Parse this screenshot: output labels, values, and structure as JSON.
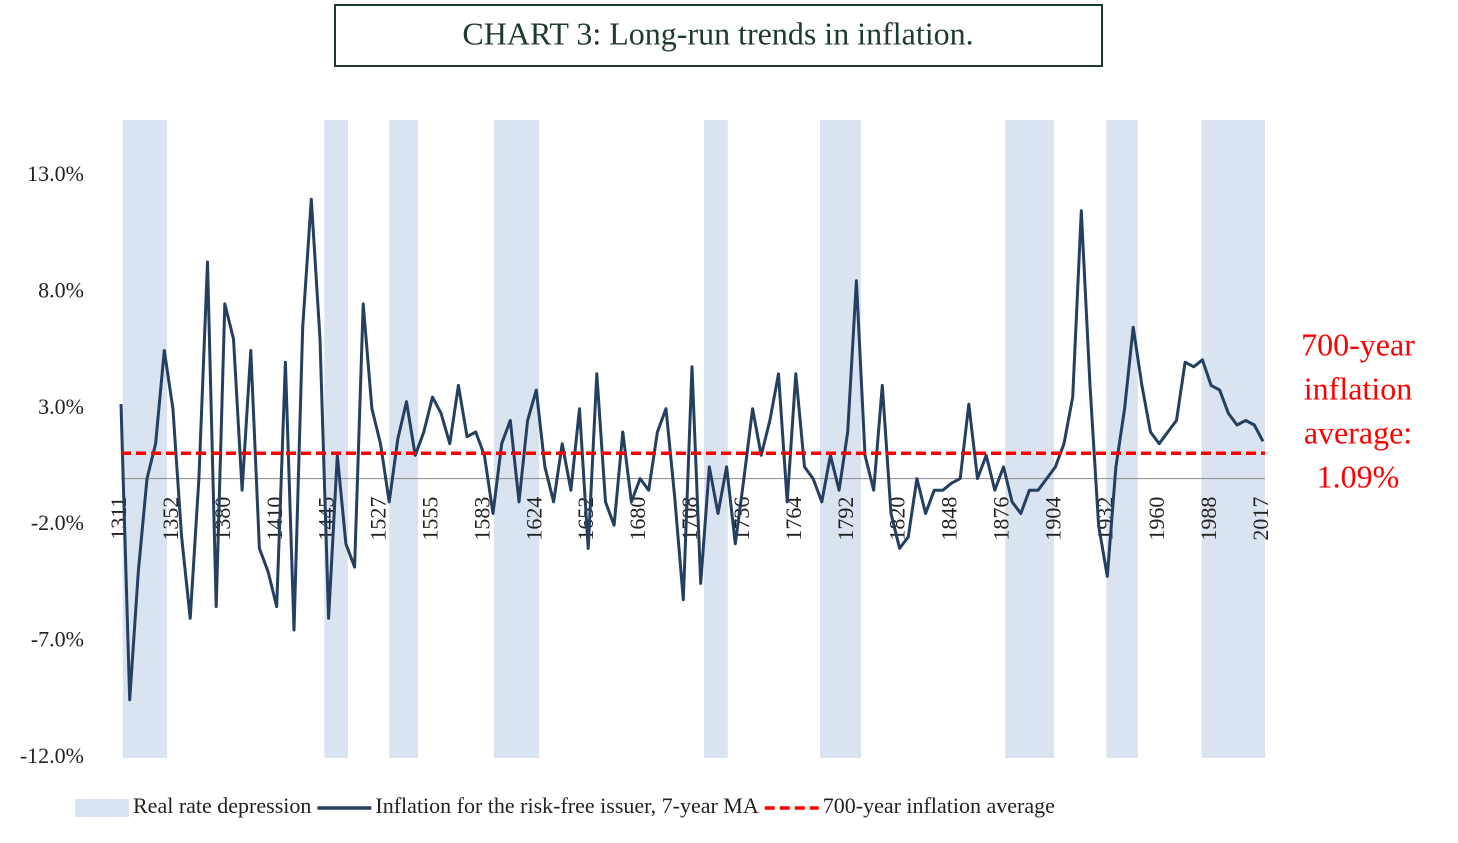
{
  "chart_data": {
    "type": "line",
    "title": "CHART 3: Long-run trends in inflation.",
    "annotation": [
      "700-year",
      "inflation",
      "average:",
      "1.09%"
    ],
    "categories": [
      "1311",
      null,
      null,
      null,
      null,
      null,
      "1352",
      null,
      null,
      null,
      null,
      null,
      "1380",
      null,
      null,
      null,
      null,
      null,
      "1410",
      null,
      null,
      null,
      null,
      null,
      "1445",
      null,
      null,
      null,
      null,
      null,
      "1527",
      null,
      null,
      null,
      null,
      null,
      "1555",
      null,
      null,
      null,
      null,
      null,
      "1583",
      null,
      null,
      null,
      null,
      null,
      "1624",
      null,
      null,
      null,
      null,
      null,
      "1652",
      null,
      null,
      null,
      null,
      null,
      "1680",
      null,
      null,
      null,
      null,
      null,
      "1708",
      null,
      null,
      null,
      null,
      null,
      "1736",
      null,
      null,
      null,
      null,
      null,
      "1764",
      null,
      null,
      null,
      null,
      null,
      "1792",
      null,
      null,
      null,
      null,
      null,
      "1820",
      null,
      null,
      null,
      null,
      null,
      "1848",
      null,
      null,
      null,
      null,
      null,
      "1876",
      null,
      null,
      null,
      null,
      null,
      "1904",
      null,
      null,
      null,
      null,
      null,
      "1932",
      null,
      null,
      null,
      null,
      null,
      "1960",
      null,
      null,
      null,
      null,
      null,
      "1988",
      null,
      null,
      null,
      null,
      null,
      "2017"
    ],
    "series": [
      {
        "name": "Real rate depression",
        "type": "band",
        "color": "#dae3f0",
        "ranges": [
          [
            0.2,
            5.1
          ],
          [
            23.5,
            26.0
          ],
          [
            31.0,
            34.1
          ],
          [
            43.1,
            48.1
          ],
          [
            67.4,
            69.9
          ],
          [
            80.8,
            85.3
          ],
          [
            102.2,
            107.6
          ],
          [
            113.9,
            117.3
          ],
          [
            124.9,
            132
          ]
        ]
      },
      {
        "name": "Inflation for the risk-free issuer, 7-year MA",
        "type": "line",
        "color": "#243f60",
        "values": [
          3.2,
          -9.5,
          -4,
          0,
          1.5,
          5.5,
          3,
          -2.5,
          -6,
          0,
          9.3,
          -5.5,
          7.5,
          6,
          -0.5,
          5.5,
          -3,
          -4,
          -5.5,
          5,
          -6.5,
          6.5,
          12,
          6,
          -6,
          1,
          -2.8,
          -3.8,
          7.5,
          3,
          1.5,
          -1,
          1.7,
          3.3,
          1,
          2,
          3.5,
          2.8,
          1.5,
          4,
          1.8,
          2,
          1,
          -1.5,
          1.5,
          2.5,
          -1,
          2.5,
          3.8,
          0.5,
          -1,
          1.5,
          -0.5,
          3,
          -3,
          4.5,
          -1,
          -2,
          2,
          -1,
          0,
          -0.5,
          2,
          3,
          -0.8,
          -5.2,
          4.8,
          -4.5,
          0.5,
          -1.5,
          0.5,
          -2.8,
          0,
          3,
          1,
          2.5,
          4.5,
          -1,
          4.5,
          0.5,
          0,
          -1,
          1,
          -0.5,
          2,
          8.5,
          1,
          -0.5,
          4,
          -1.5,
          -3,
          -2.5,
          0,
          -1.5,
          -0.5,
          -0.5,
          -0.2,
          0,
          3.2,
          0,
          1,
          -0.5,
          0.5,
          -1,
          -1.5,
          -0.5,
          -0.5,
          0,
          0.5,
          1.5,
          3.5,
          11.5,
          4,
          -2,
          -4.2,
          0.5,
          3,
          6.5,
          4,
          2,
          1.5,
          2,
          2.5,
          5,
          4.8,
          5.1,
          4,
          3.8,
          2.8,
          2.3,
          2.5,
          2.3,
          1.6
        ]
      },
      {
        "name": "700-year inflation average",
        "type": "hline",
        "color": "#ff0000",
        "value": 1.09
      }
    ],
    "ylim": [
      -12,
      15.4
    ],
    "yticks": [
      {
        "value": -12,
        "label": "-12.0%"
      },
      {
        "value": -7,
        "label": "-7.0%"
      },
      {
        "value": -2,
        "label": "-2.0%"
      },
      {
        "value": 3,
        "label": "3.0%"
      },
      {
        "value": 8,
        "label": "8.0%"
      },
      {
        "value": 13,
        "label": "13.0%"
      }
    ]
  }
}
